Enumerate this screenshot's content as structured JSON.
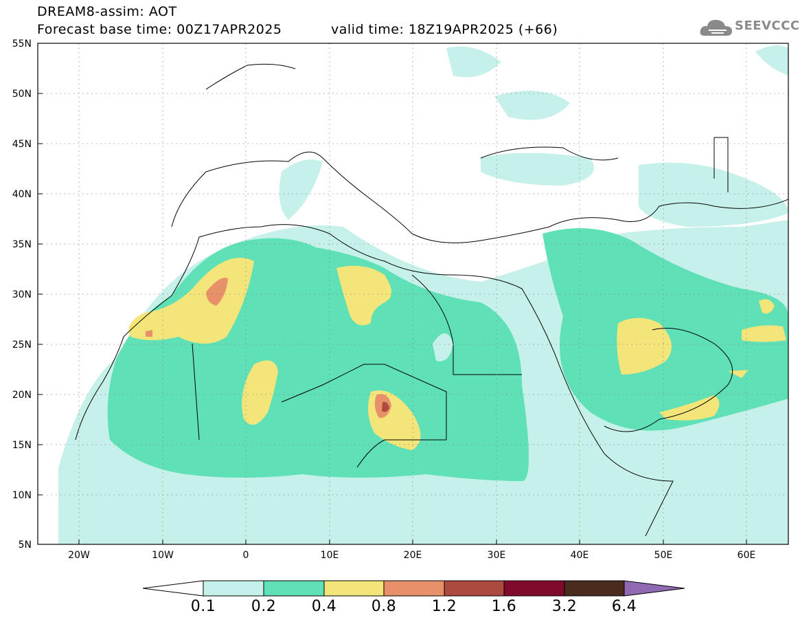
{
  "header": {
    "title": "DREAM8-assim: AOT",
    "base_time": "Forecast base time: 00Z17APR2025",
    "valid_time": "valid time: 18Z19APR2025 (+66)"
  },
  "logo": {
    "text": "SEEVCCC",
    "icon": "cloud-logo-icon"
  },
  "map": {
    "lat_labels": [
      "55N",
      "50N",
      "45N",
      "40N",
      "35N",
      "30N",
      "25N",
      "20N",
      "15N",
      "10N",
      "5N"
    ],
    "lon_labels": [
      "20W",
      "10W",
      "0",
      "10E",
      "20E",
      "30E",
      "40E",
      "50E",
      "60E"
    ],
    "gridlines": "dotted"
  },
  "colorbar": {
    "levels": [
      "0.1",
      "0.2",
      "0.4",
      "0.8",
      "1.2",
      "1.6",
      "3.2",
      "6.4"
    ],
    "colors": [
      "#ffffff",
      "#c6f0ea",
      "#5fe0b6",
      "#f3e57a",
      "#e7906a",
      "#ac4a3f",
      "#7f0a2c",
      "#4a2c1e",
      "#8f6ab2"
    ]
  }
}
